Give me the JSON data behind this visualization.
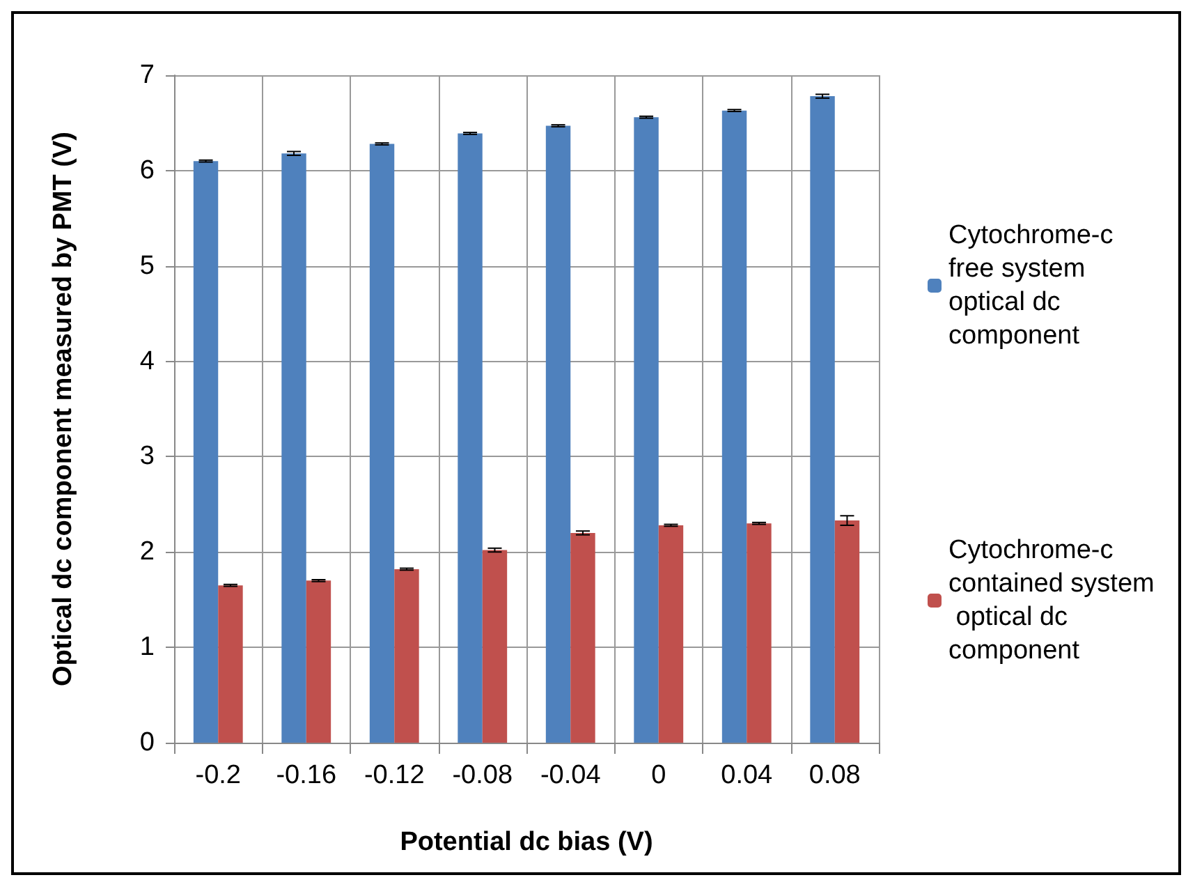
{
  "chart_data": {
    "type": "bar",
    "xlabel": "Potential dc bias (V)",
    "ylabel": "Optical dc component measured by PMT (V)",
    "categories": [
      "-0.2",
      "-0.16",
      "-0.12",
      "-0.08",
      "-0.04",
      "0",
      "0.04",
      "0.08"
    ],
    "series": [
      {
        "name": "Cytochrome-c free system optical dc component",
        "color": "#4f81bd",
        "values": [
          6.1,
          6.18,
          6.28,
          6.39,
          6.47,
          6.56,
          6.63,
          6.78
        ],
        "errors": [
          0.01,
          0.02,
          0.01,
          0.01,
          0.01,
          0.01,
          0.01,
          0.02
        ]
      },
      {
        "name": "Cytochrome-c contained system optical dc component",
        "color": "#c0504d",
        "values": [
          1.65,
          1.7,
          1.82,
          2.02,
          2.2,
          2.28,
          2.3,
          2.33
        ],
        "errors": [
          0.01,
          0.01,
          0.01,
          0.02,
          0.02,
          0.01,
          0.01,
          0.05
        ]
      }
    ],
    "ylim": [
      0,
      7
    ],
    "yticks": [
      0,
      1,
      2,
      3,
      4,
      5,
      6,
      7
    ],
    "grid": true,
    "legend": "right"
  }
}
